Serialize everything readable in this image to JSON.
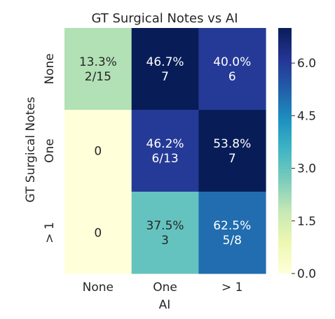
{
  "chart_data": {
    "type": "heatmap",
    "title": "GT Surgical Notes vs AI",
    "xlabel": "AI",
    "ylabel": "GT Surgical Notes",
    "x_categories": [
      "None",
      "One",
      "> 1"
    ],
    "y_categories": [
      "None",
      "One",
      "> 1"
    ],
    "values": [
      [
        2,
        7,
        6
      ],
      [
        0,
        6,
        7
      ],
      [
        0,
        3,
        5
      ]
    ],
    "cell_labels": [
      [
        [
          "13.3%",
          "2/15"
        ],
        [
          "46.7%",
          "7"
        ],
        [
          "40.0%",
          "6"
        ]
      ],
      [
        [
          "0"
        ],
        [
          "46.2%",
          "6/13"
        ],
        [
          "53.8%",
          "7"
        ]
      ],
      [
        [
          "0"
        ],
        [
          "37.5%",
          "3"
        ],
        [
          "62.5%",
          "5/8"
        ]
      ]
    ],
    "colorbar": {
      "range": [
        0,
        7
      ],
      "ticks": [
        0.0,
        1.5,
        3.0,
        4.5,
        6.0
      ],
      "tick_labels": [
        "0.0",
        "1.5",
        "3.0",
        "4.5",
        "6.0"
      ],
      "colormap": "YlGnBu"
    }
  }
}
